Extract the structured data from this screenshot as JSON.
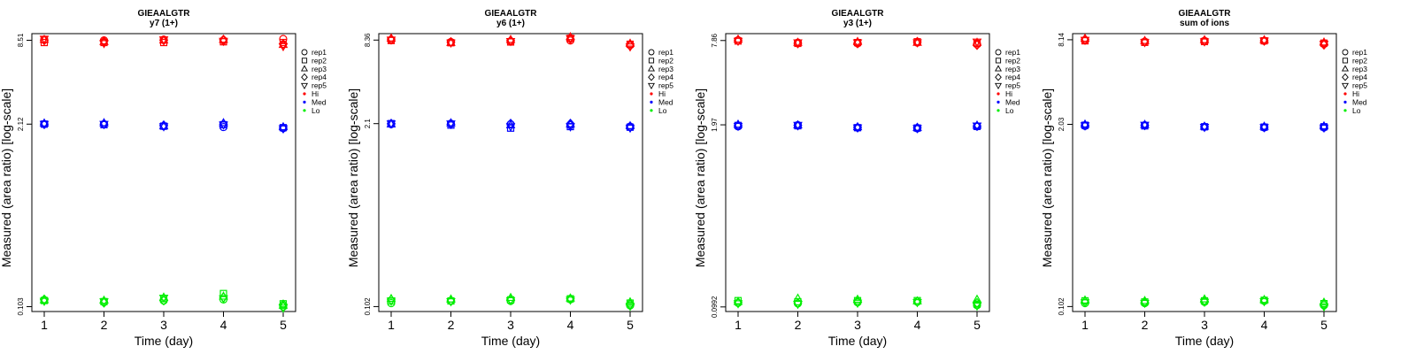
{
  "colors": {
    "Hi": "#ff0000",
    "Med": "#0000ff",
    "Lo": "#00ee00"
  },
  "legend": {
    "placement": "right",
    "replicates": [
      {
        "label": "rep1",
        "shape": "circle"
      },
      {
        "label": "rep2",
        "shape": "square"
      },
      {
        "label": "rep3",
        "shape": "triangle-up"
      },
      {
        "label": "rep4",
        "shape": "diamond"
      },
      {
        "label": "rep5",
        "shape": "triangle-down"
      }
    ],
    "levels": [
      {
        "label": "Hi",
        "color_key": "Hi"
      },
      {
        "label": "Med",
        "color_key": "Med"
      },
      {
        "label": "Lo",
        "color_key": "Lo"
      }
    ]
  },
  "chart_data": [
    {
      "type": "scatter",
      "title": "GIEAALGTR",
      "subtitle": "y7 (1+)",
      "xlabel": "Time (day)",
      "ylabel": "Measured (area ratio) [log-scale]",
      "x_ticks": [
        1,
        2,
        3,
        4,
        5
      ],
      "y_scale": "log",
      "y_ticks": [
        0.103,
        2.12,
        8.51
      ],
      "y_tick_labels": [
        "0.103",
        "2.12",
        "8.51"
      ],
      "ylim": [
        0.095,
        9.5
      ],
      "series": [
        {
          "name": "Hi",
          "values": [
            [
              8.6,
              8.5,
              8.6,
              8.5,
              8.7
            ],
            [
              8.2,
              8.2,
              8.2,
              8.3,
              8.2
            ],
            [
              8.6,
              8.3,
              8.5,
              8.6,
              7.9
            ],
            [
              8.5,
              8.4,
              8.5,
              8.6,
              8.0
            ],
            [
              8.7,
              8.1,
              8.6,
              8.4,
              7.7
            ]
          ]
        },
        {
          "name": "Med",
          "values": [
            [
              2.12,
              2.12,
              2.05,
              2.02,
              1.98
            ],
            [
              2.12,
              2.1,
              2.05,
              2.1,
              2.0
            ],
            [
              2.15,
              2.16,
              2.05,
              2.16,
              2.02
            ],
            [
              2.12,
              2.12,
              2.08,
              2.12,
              1.98
            ],
            [
              2.12,
              2.12,
              2.04,
              2.1,
              1.97
            ]
          ]
        },
        {
          "name": "Lo",
          "values": [
            [
              0.115,
              0.111,
              0.114,
              0.116,
              0.103
            ],
            [
              0.114,
              0.112,
              0.118,
              0.128,
              0.108
            ],
            [
              0.115,
              0.114,
              0.12,
              0.122,
              0.105
            ],
            [
              0.116,
              0.11,
              0.114,
              0.12,
              0.107
            ],
            [
              0.113,
              0.112,
              0.119,
              0.118,
              0.101
            ]
          ]
        }
      ]
    },
    {
      "type": "scatter",
      "title": "GIEAALGTR",
      "subtitle": "y6 (1+)",
      "xlabel": "Time (day)",
      "ylabel": "Measured (area ratio) [log-scale]",
      "x_ticks": [
        1,
        2,
        3,
        4,
        5
      ],
      "y_scale": "log",
      "y_ticks": [
        0.102,
        2.1,
        8.36
      ],
      "y_tick_labels": [
        "0.102",
        "2.1",
        "8.36"
      ],
      "ylim": [
        0.094,
        9.3
      ],
      "series": [
        {
          "name": "Hi",
          "values": [
            [
              8.4,
              8.1,
              8.2,
              8.3,
              7.7
            ],
            [
              8.3,
              8.0,
              8.1,
              8.6,
              7.8
            ],
            [
              8.6,
              8.0,
              8.4,
              8.8,
              7.9
            ],
            [
              8.5,
              8.1,
              8.3,
              8.5,
              7.6
            ],
            [
              8.4,
              8.0,
              8.2,
              8.6,
              7.5
            ]
          ]
        },
        {
          "name": "Med",
          "values": [
            [
              2.08,
              2.1,
              2.08,
              2.05,
              2.0
            ],
            [
              2.1,
              2.05,
              1.95,
              2.0,
              1.98
            ],
            [
              2.08,
              2.12,
              2.05,
              2.08,
              2.02
            ],
            [
              2.1,
              2.08,
              2.1,
              2.1,
              1.98
            ],
            [
              2.1,
              2.1,
              2.0,
              2.0,
              1.96
            ]
          ]
        },
        {
          "name": "Lo",
          "values": [
            [
              0.108,
              0.112,
              0.112,
              0.115,
              0.104
            ],
            [
              0.112,
              0.112,
              0.114,
              0.116,
              0.108
            ],
            [
              0.116,
              0.115,
              0.118,
              0.117,
              0.11
            ],
            [
              0.114,
              0.112,
              0.115,
              0.116,
              0.106
            ],
            [
              0.112,
              0.111,
              0.113,
              0.114,
              0.103
            ]
          ]
        }
      ]
    },
    {
      "type": "scatter",
      "title": "GIEAALGTR",
      "subtitle": "y3 (1+)",
      "xlabel": "Time (day)",
      "ylabel": "Measured (area ratio) [log-scale]",
      "x_ticks": [
        1,
        2,
        3,
        4,
        5
      ],
      "y_scale": "log",
      "y_ticks": [
        0.0992,
        1.97,
        7.86
      ],
      "y_tick_labels": [
        "0.0992",
        "1.97",
        "7.86"
      ],
      "ylim": [
        0.092,
        8.8
      ],
      "series": [
        {
          "name": "Hi",
          "values": [
            [
              7.9,
              7.6,
              7.5,
              7.6,
              7.4
            ],
            [
              7.8,
              7.5,
              7.6,
              7.7,
              7.5
            ],
            [
              8.0,
              7.6,
              7.7,
              7.6,
              7.6
            ],
            [
              7.9,
              7.5,
              7.5,
              7.7,
              7.3
            ],
            [
              7.8,
              7.6,
              7.6,
              7.6,
              7.7
            ]
          ]
        },
        {
          "name": "Med",
          "values": [
            [
              1.92,
              1.96,
              1.88,
              1.86,
              1.92
            ],
            [
              1.95,
              1.94,
              1.88,
              1.87,
              1.92
            ],
            [
              1.98,
              1.96,
              1.9,
              1.88,
              1.95
            ],
            [
              1.95,
              1.95,
              1.89,
              1.88,
              1.93
            ],
            [
              1.93,
              1.96,
              1.88,
              1.86,
              1.94
            ]
          ]
        },
        {
          "name": "Lo",
          "values": [
            [
              0.106,
              0.105,
              0.107,
              0.108,
              0.102
            ],
            [
              0.11,
              0.108,
              0.11,
              0.11,
              0.104
            ],
            [
              0.108,
              0.114,
              0.112,
              0.109,
              0.112
            ],
            [
              0.107,
              0.106,
              0.108,
              0.108,
              0.106
            ],
            [
              0.105,
              0.104,
              0.106,
              0.107,
              0.101
            ]
          ]
        }
      ]
    },
    {
      "type": "scatter",
      "title": "GIEAALGTR",
      "subtitle": "sum of ions",
      "xlabel": "Time (day)",
      "ylabel": "Measured (area ratio) [log-scale]",
      "x_ticks": [
        1,
        2,
        3,
        4,
        5
      ],
      "y_scale": "log",
      "y_ticks": [
        0.102,
        2.03,
        8.14
      ],
      "y_tick_labels": [
        "0.102",
        "2.03",
        "8.14"
      ],
      "ylim": [
        0.094,
        9.0
      ],
      "series": [
        {
          "name": "Hi",
          "values": [
            [
              8.1,
              7.9,
              8.0,
              8.0,
              7.6
            ],
            [
              8.0,
              7.8,
              7.9,
              8.0,
              7.7
            ],
            [
              8.3,
              8.0,
              8.1,
              8.1,
              7.8
            ],
            [
              8.2,
              7.9,
              8.0,
              8.0,
              7.5
            ],
            [
              8.1,
              7.8,
              7.9,
              8.0,
              7.6
            ]
          ]
        },
        {
          "name": "Med",
          "values": [
            [
              1.98,
              2.0,
              1.95,
              1.93,
              1.93
            ],
            [
              2.0,
              1.98,
              1.95,
              1.94,
              1.95
            ],
            [
              2.03,
              2.02,
              1.96,
              1.96,
              1.97
            ],
            [
              2.0,
              2.0,
              1.95,
              1.94,
              1.94
            ],
            [
              1.99,
              2.01,
              1.94,
              1.93,
              1.92
            ]
          ]
        },
        {
          "name": "Lo",
          "values": [
            [
              0.108,
              0.108,
              0.11,
              0.112,
              0.104
            ],
            [
              0.112,
              0.11,
              0.112,
              0.113,
              0.107
            ],
            [
              0.113,
              0.112,
              0.115,
              0.114,
              0.109
            ],
            [
              0.11,
              0.109,
              0.111,
              0.112,
              0.106
            ],
            [
              0.109,
              0.108,
              0.11,
              0.111,
              0.102
            ]
          ]
        }
      ]
    }
  ]
}
